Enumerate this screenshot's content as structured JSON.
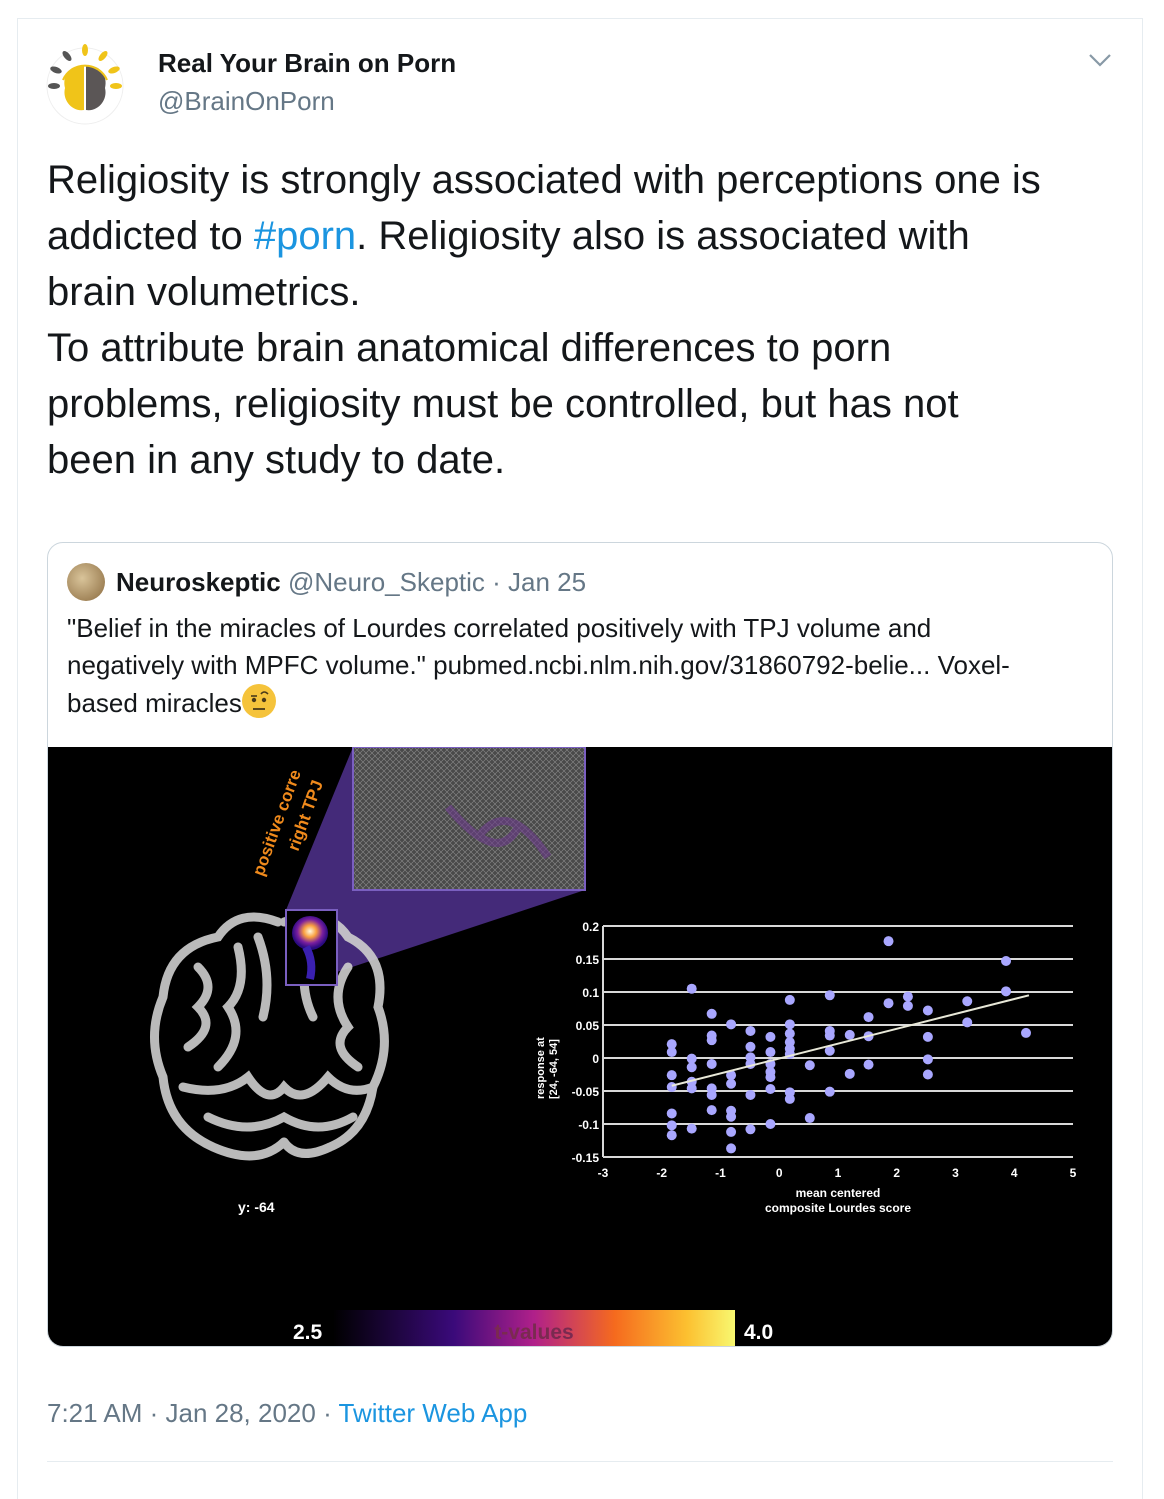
{
  "tweet": {
    "author_name": "Real Your Brain on Porn",
    "author_handle": "@BrainOnPorn",
    "text_lines": [
      [
        "Religiosity is strongly associated with perceptions one is"
      ],
      [
        "addicted to ",
        "#porn",
        ". Religiosity also is associated with"
      ],
      [
        "brain volumetrics."
      ],
      [
        "To attribute brain anatomical differences to porn"
      ],
      [
        "problems, religiosity must be controlled, but has not"
      ],
      [
        "been in any study to date."
      ]
    ],
    "timestamp": "7:21 AM · Jan 28, 2020",
    "separator": " · ",
    "source_app": "Twitter Web App",
    "menu_icon": "chevron-down-icon"
  },
  "quote": {
    "author_name": "Neuroskeptic",
    "author_handle": "@Neuro_Skeptic",
    "date": "· Jan 25",
    "text_lines": [
      "\"Belief in the miracles of Lourdes correlated positively with TPJ volume and",
      "negatively with MPFC volume.\" pubmed.ncbi.nlm.nih.gov/31860792-belie... Voxel-",
      "based miracles"
    ],
    "emoji": "face-with-raised-eyebrow"
  },
  "figure": {
    "rotated_label_1": "positive corre",
    "rotated_label_2": "right TPJ",
    "slice_label": "y: -64",
    "colorbar_min": "2.5",
    "colorbar_label": "t-values",
    "colorbar_max": "4.0",
    "colors": {
      "points": "#a9a7ff",
      "inset": "#5a3d99",
      "label_orange": "#f08a1c"
    }
  },
  "chart_data": {
    "type": "scatter",
    "xlabel": [
      "mean centered",
      "composite Lourdes score"
    ],
    "ylabel": [
      "response at",
      "[24, -64, 54]"
    ],
    "xlim": [
      -3,
      5
    ],
    "ylim": [
      -0.15,
      0.2
    ],
    "xticks": [
      "-3",
      "-2",
      "-1",
      "0",
      "1",
      "2",
      "3",
      "4",
      "5"
    ],
    "yticks": [
      "0.2",
      "0.15",
      "0.1",
      "0.05",
      "0",
      "-0.05",
      "-0.1",
      "-0.15"
    ],
    "grid": "horizontal",
    "trend_line": [
      [
        -1.83,
        -0.042
      ],
      [
        4.25,
        0.095
      ]
    ],
    "points": [
      [
        -1.83,
        0.021
      ],
      [
        -1.83,
        0.009
      ],
      [
        -1.83,
        -0.026
      ],
      [
        -1.83,
        -0.044
      ],
      [
        -1.83,
        -0.084
      ],
      [
        -1.83,
        -0.102
      ],
      [
        -1.83,
        -0.117
      ],
      [
        -1.49,
        0.105
      ],
      [
        -1.49,
        -0.001
      ],
      [
        -1.49,
        -0.014
      ],
      [
        -1.49,
        -0.036
      ],
      [
        -1.49,
        -0.046
      ],
      [
        -1.49,
        -0.107
      ],
      [
        -1.15,
        0.067
      ],
      [
        -1.15,
        0.034
      ],
      [
        -1.15,
        0.027
      ],
      [
        -1.15,
        -0.009
      ],
      [
        -1.15,
        -0.046
      ],
      [
        -1.15,
        -0.056
      ],
      [
        -1.15,
        -0.079
      ],
      [
        -0.82,
        0.051
      ],
      [
        -0.82,
        -0.026
      ],
      [
        -0.82,
        -0.039
      ],
      [
        -0.82,
        -0.08
      ],
      [
        -0.82,
        -0.089
      ],
      [
        -0.82,
        -0.112
      ],
      [
        -0.82,
        -0.137
      ],
      [
        -0.49,
        0.041
      ],
      [
        -0.49,
        0.017
      ],
      [
        -0.49,
        0.001
      ],
      [
        -0.49,
        -0.009
      ],
      [
        -0.49,
        -0.056
      ],
      [
        -0.49,
        -0.108
      ],
      [
        -0.15,
        0.032
      ],
      [
        -0.15,
        0.009
      ],
      [
        -0.15,
        -0.009
      ],
      [
        -0.15,
        -0.021
      ],
      [
        -0.15,
        -0.029
      ],
      [
        -0.15,
        -0.047
      ],
      [
        -0.15,
        -0.1
      ],
      [
        0.18,
        0.088
      ],
      [
        0.18,
        0.051
      ],
      [
        0.18,
        0.037
      ],
      [
        0.18,
        0.024
      ],
      [
        0.18,
        0.014
      ],
      [
        0.18,
        0.006
      ],
      [
        0.18,
        -0.052
      ],
      [
        0.18,
        -0.062
      ],
      [
        0.52,
        -0.011
      ],
      [
        0.52,
        -0.091
      ],
      [
        0.86,
        0.095
      ],
      [
        0.86,
        0.041
      ],
      [
        0.86,
        0.034
      ],
      [
        0.86,
        0.011
      ],
      [
        0.86,
        -0.051
      ],
      [
        1.2,
        0.035
      ],
      [
        1.2,
        -0.024
      ],
      [
        1.52,
        0.062
      ],
      [
        1.52,
        0.033
      ],
      [
        1.52,
        -0.01
      ],
      [
        1.86,
        0.177
      ],
      [
        1.86,
        0.083
      ],
      [
        2.19,
        0.093
      ],
      [
        2.19,
        0.079
      ],
      [
        2.53,
        0.072
      ],
      [
        2.53,
        0.032
      ],
      [
        2.53,
        -0.002
      ],
      [
        2.53,
        -0.025
      ],
      [
        3.2,
        0.086
      ],
      [
        3.2,
        0.054
      ],
      [
        3.86,
        0.147
      ],
      [
        3.86,
        0.101
      ],
      [
        4.2,
        0.038
      ]
    ]
  }
}
